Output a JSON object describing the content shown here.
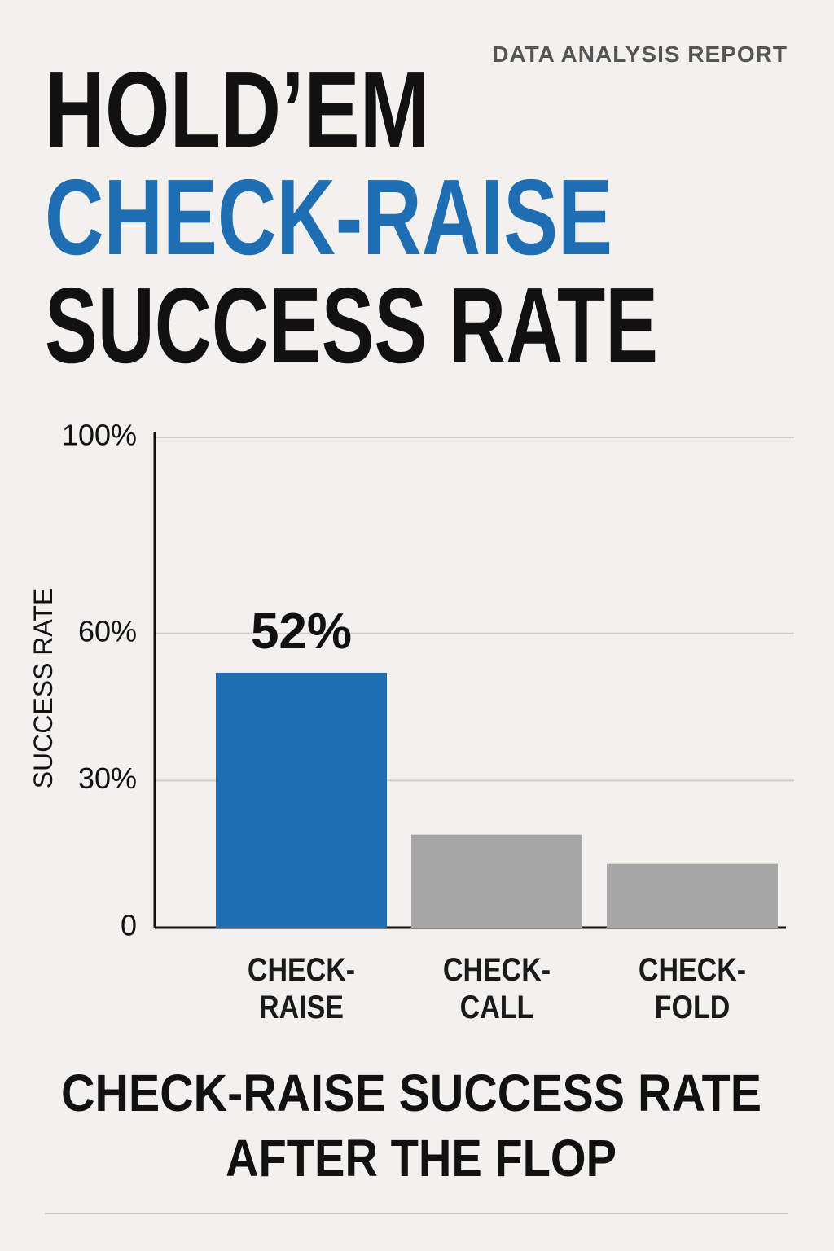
{
  "header": "DATA ANALYSIS REPORT",
  "chart_data": {
    "type": "bar",
    "title": [
      "HOLD’EM",
      "CHECK-RAISE",
      "SUCCESS RATE"
    ],
    "caption": [
      "CHECK-RAISE SUCCESS RATE",
      "AFTER THE FLOP"
    ],
    "y_label": "SUCCESS RATE",
    "categories": [
      "CHECK-RAISE",
      "CHECK-CALL",
      "CHECK-FOLD"
    ],
    "values": [
      52,
      19,
      13
    ],
    "value_labels": [
      "52%",
      null,
      null
    ],
    "colors": [
      "#1f6db3",
      "#a6a6a6",
      "#a6a6a6"
    ],
    "ylim": [
      0,
      100
    ],
    "yticks": [
      0,
      {
        "value": 30,
        "label": "30%"
      },
      {
        "value": 60,
        "label": "60%"
      },
      {
        "value": 100,
        "label": "100%"
      }
    ],
    "grid": true
  }
}
